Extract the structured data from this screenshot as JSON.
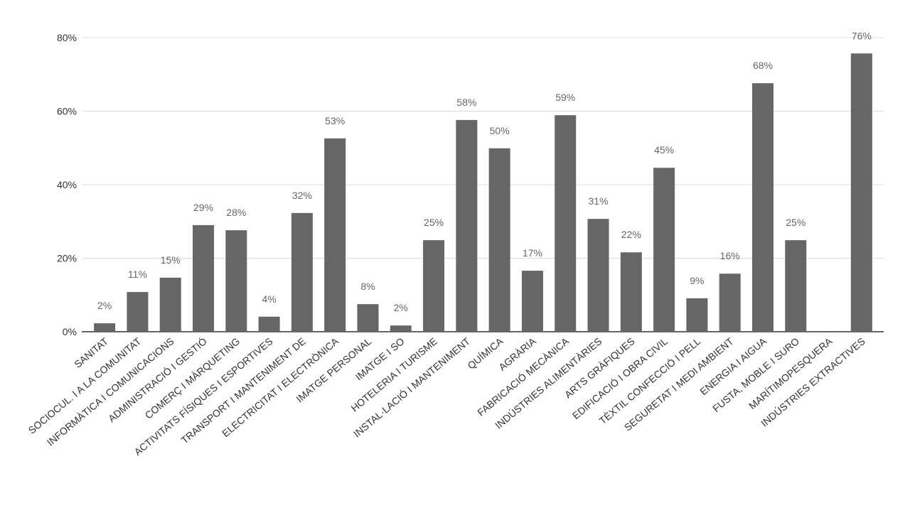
{
  "chart_data": {
    "type": "bar",
    "categories": [
      "SANITAT",
      "SOCIOCUL. I A LA COMUNITAT",
      "INFORMÀTICA I COMUNICACIONS",
      "ADMINISTRACIÓ I GESTIÓ",
      "COMERÇ I MÀRQUETING",
      "ACTIVITATS FÍSIQUES I ESPORTIVES",
      "TRANSPORT I MANTENIMENT DE",
      "ELECTRICITAT I ELECTRÒNICA",
      "IMATGE PERSONAL",
      "IMATGE I SO",
      "HOTELERIA I TURISME",
      "INSTAL·LACIÓ I MANTENIMENT",
      "QUÍMICA",
      "AGRÀRIA",
      "FABRICACIÓ MECÀNICA",
      "INDÚSTRIES ALIMENTÀRIES",
      "ARTS GRÀFIQUES",
      "EDIFICACIÓ  I OBRA CIVIL",
      "TÈXTIL CONFECCIÓ I PELL",
      "SEGURETAT I MEDI AMBIENT",
      "ENERGIA I AIGUA",
      "FUSTA, MOBLE I SURO",
      "MARÍTIMOPESQUERA",
      "INDÚSTRIES EXTRACTIVES"
    ],
    "values": [
      2.3,
      10.8,
      14.7,
      29.0,
      27.6,
      4.1,
      32.3,
      52.6,
      7.5,
      1.7,
      24.9,
      57.6,
      49.9,
      16.6,
      58.9,
      30.7,
      21.6,
      44.6,
      9.1,
      15.8,
      67.6,
      24.9,
      null,
      75.7
    ],
    "value_labels": [
      "2%",
      "11%",
      "15%",
      "29%",
      "28%",
      "4%",
      "32%",
      "53%",
      "8%",
      "2%",
      "25%",
      "58%",
      "50%",
      "17%",
      "59%",
      "31%",
      "22%",
      "45%",
      "9%",
      "16%",
      "68%",
      "25%",
      null,
      "76%"
    ],
    "color": "#666666",
    "ylim": [
      0,
      80
    ],
    "yticks": [
      {
        "value": 0,
        "label": "0%"
      },
      {
        "value": 20,
        "label": "20%"
      },
      {
        "value": 40,
        "label": "40%"
      },
      {
        "value": 60,
        "label": "60%"
      },
      {
        "value": 80,
        "label": "80%"
      }
    ],
    "grid": true
  }
}
